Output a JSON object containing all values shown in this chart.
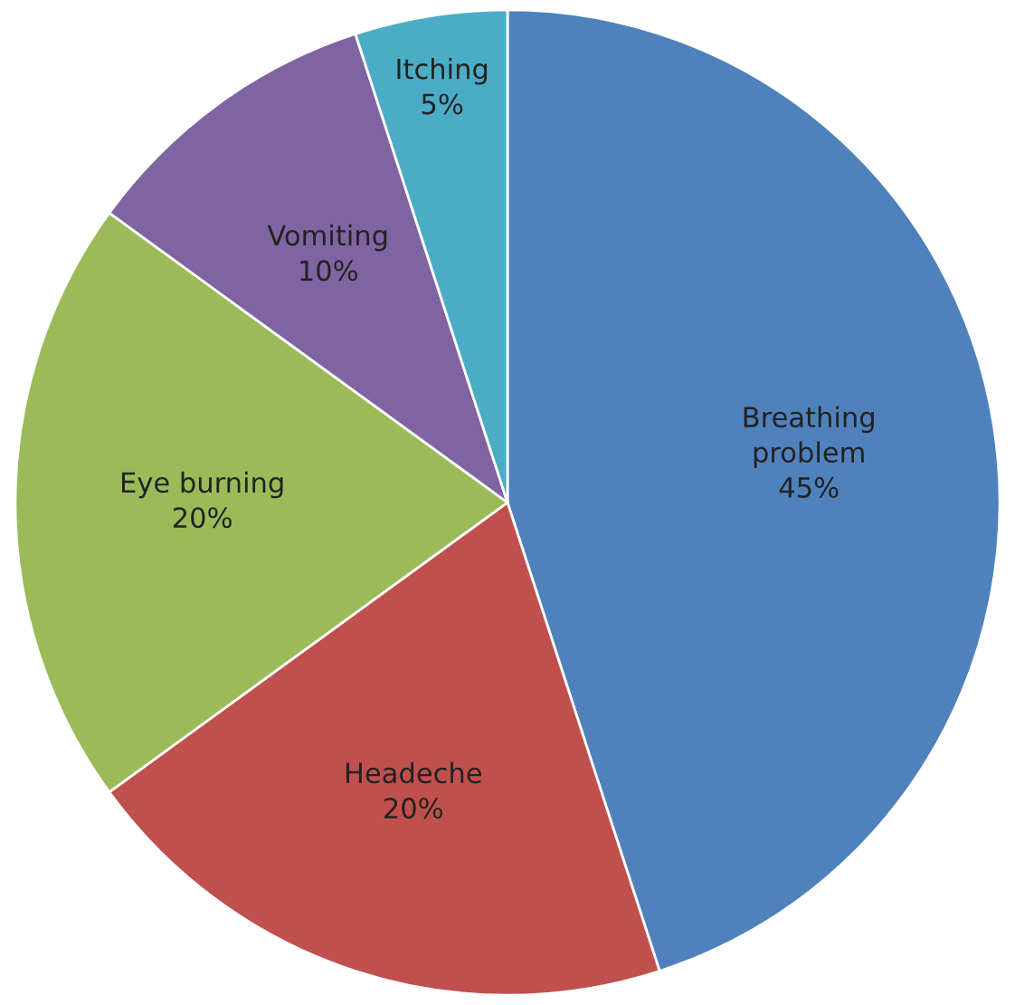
{
  "chart_data": {
    "type": "pie",
    "categories": [
      "Breathing problem",
      "Headeche",
      "Eye burning",
      "Vomiting",
      "Itching"
    ],
    "values": [
      45,
      20,
      20,
      10,
      5
    ],
    "colors": [
      "#4f81bd",
      "#c0504d",
      "#9bbb59",
      "#8064a2",
      "#4bacc6"
    ],
    "value_labels": [
      "45%",
      "20%",
      "20%",
      "10%",
      "5%"
    ],
    "legend": false
  }
}
